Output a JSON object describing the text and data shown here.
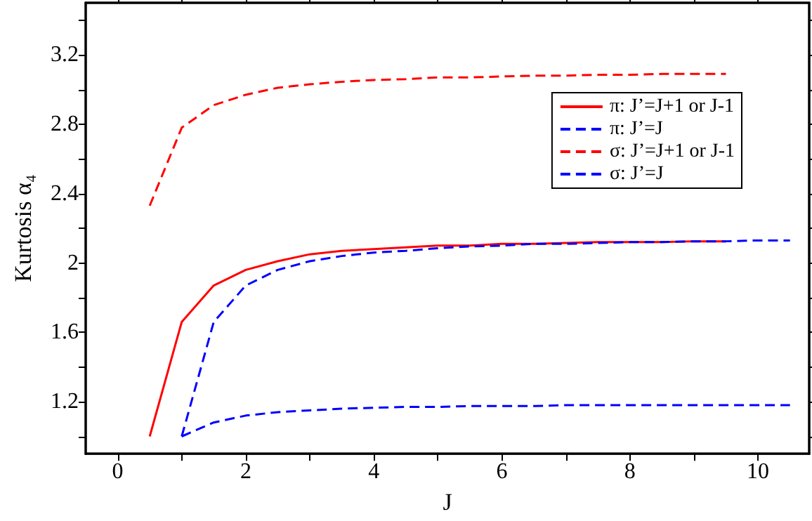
{
  "chart_data": {
    "type": "line",
    "xlabel": "J",
    "ylabel": "Kurtosis α₄",
    "xlim": [
      -0.5,
      10.8
    ],
    "xticks": [
      0,
      {
        "value": 1,
        "label": null
      },
      2,
      {
        "value": 3,
        "label": null
      },
      4,
      {
        "value": 5,
        "label": null
      },
      6,
      {
        "value": 7,
        "label": null
      },
      8,
      {
        "value": 9,
        "label": null
      },
      10
    ],
    "ylim": [
      0.9,
      3.5
    ],
    "yticks": [
      {
        "value": 1.0,
        "label": null
      },
      1.2,
      {
        "value": 1.4,
        "label": null
      },
      1.6,
      {
        "value": 1.8,
        "label": null
      },
      2,
      {
        "value": 2.2,
        "label": null
      },
      2.4,
      {
        "value": 2.6,
        "label": null
      },
      2.8,
      {
        "value": 3.0,
        "label": null
      },
      3.2,
      {
        "value": 3.4,
        "label": null
      }
    ],
    "grid": false,
    "legend": "top right",
    "marker": "none",
    "series": [
      {
        "name": "π: J’=J+1 or J-1",
        "color": "#ff0000",
        "line_style": "solid",
        "x": [
          0.5,
          1,
          1.5,
          2,
          2.5,
          3,
          3.5,
          4,
          4.5,
          5,
          5.5,
          6,
          6.5,
          7,
          7.5,
          8,
          8.5,
          9,
          9.5
        ],
        "values": [
          1.0,
          1.66,
          1.87,
          1.96,
          2.01,
          2.05,
          2.07,
          2.08,
          2.09,
          2.1,
          2.1,
          2.11,
          2.11,
          2.115,
          2.12,
          2.12,
          2.12,
          2.125,
          2.125
        ]
      },
      {
        "name": "π: J’=J",
        "color": "#0000ff",
        "line_style": "dashed",
        "x": [
          1,
          1.5,
          2,
          2.5,
          3,
          3.5,
          4,
          4.5,
          5,
          5.5,
          6,
          6.5,
          7,
          7.5,
          8,
          8.5,
          9,
          9.5,
          10,
          10.5
        ],
        "values": [
          1.0,
          1.66,
          1.87,
          1.96,
          2.01,
          2.04,
          2.06,
          2.07,
          2.085,
          2.095,
          2.1,
          2.11,
          2.11,
          2.115,
          2.12,
          2.12,
          2.125,
          2.125,
          2.13,
          2.13
        ]
      },
      {
        "name": "σ: J’=J+1 or J-1",
        "color": "#ff0000",
        "line_style": "dashed",
        "x": [
          0.5,
          1,
          1.5,
          2,
          2.5,
          3,
          3.5,
          4,
          4.5,
          5,
          5.5,
          6,
          6.5,
          7,
          7.5,
          8,
          8.5,
          9,
          9.5
        ],
        "values": [
          2.33,
          2.78,
          2.91,
          2.97,
          3.01,
          3.03,
          3.045,
          3.055,
          3.06,
          3.07,
          3.07,
          3.075,
          3.08,
          3.08,
          3.085,
          3.085,
          3.09,
          3.09,
          3.09
        ]
      },
      {
        "name": "σ: J’=J",
        "color": "#0000ff",
        "line_style": "dashed",
        "x": [
          1,
          1.5,
          2,
          2.5,
          3,
          3.5,
          4,
          4.5,
          5,
          5.5,
          6,
          6.5,
          7,
          7.5,
          8,
          8.5,
          9,
          9.5,
          10,
          10.5
        ],
        "values": [
          1.0,
          1.08,
          1.12,
          1.14,
          1.15,
          1.16,
          1.165,
          1.17,
          1.17,
          1.175,
          1.175,
          1.175,
          1.18,
          1.18,
          1.18,
          1.18,
          1.18,
          1.18,
          1.18,
          1.18
        ]
      }
    ]
  }
}
